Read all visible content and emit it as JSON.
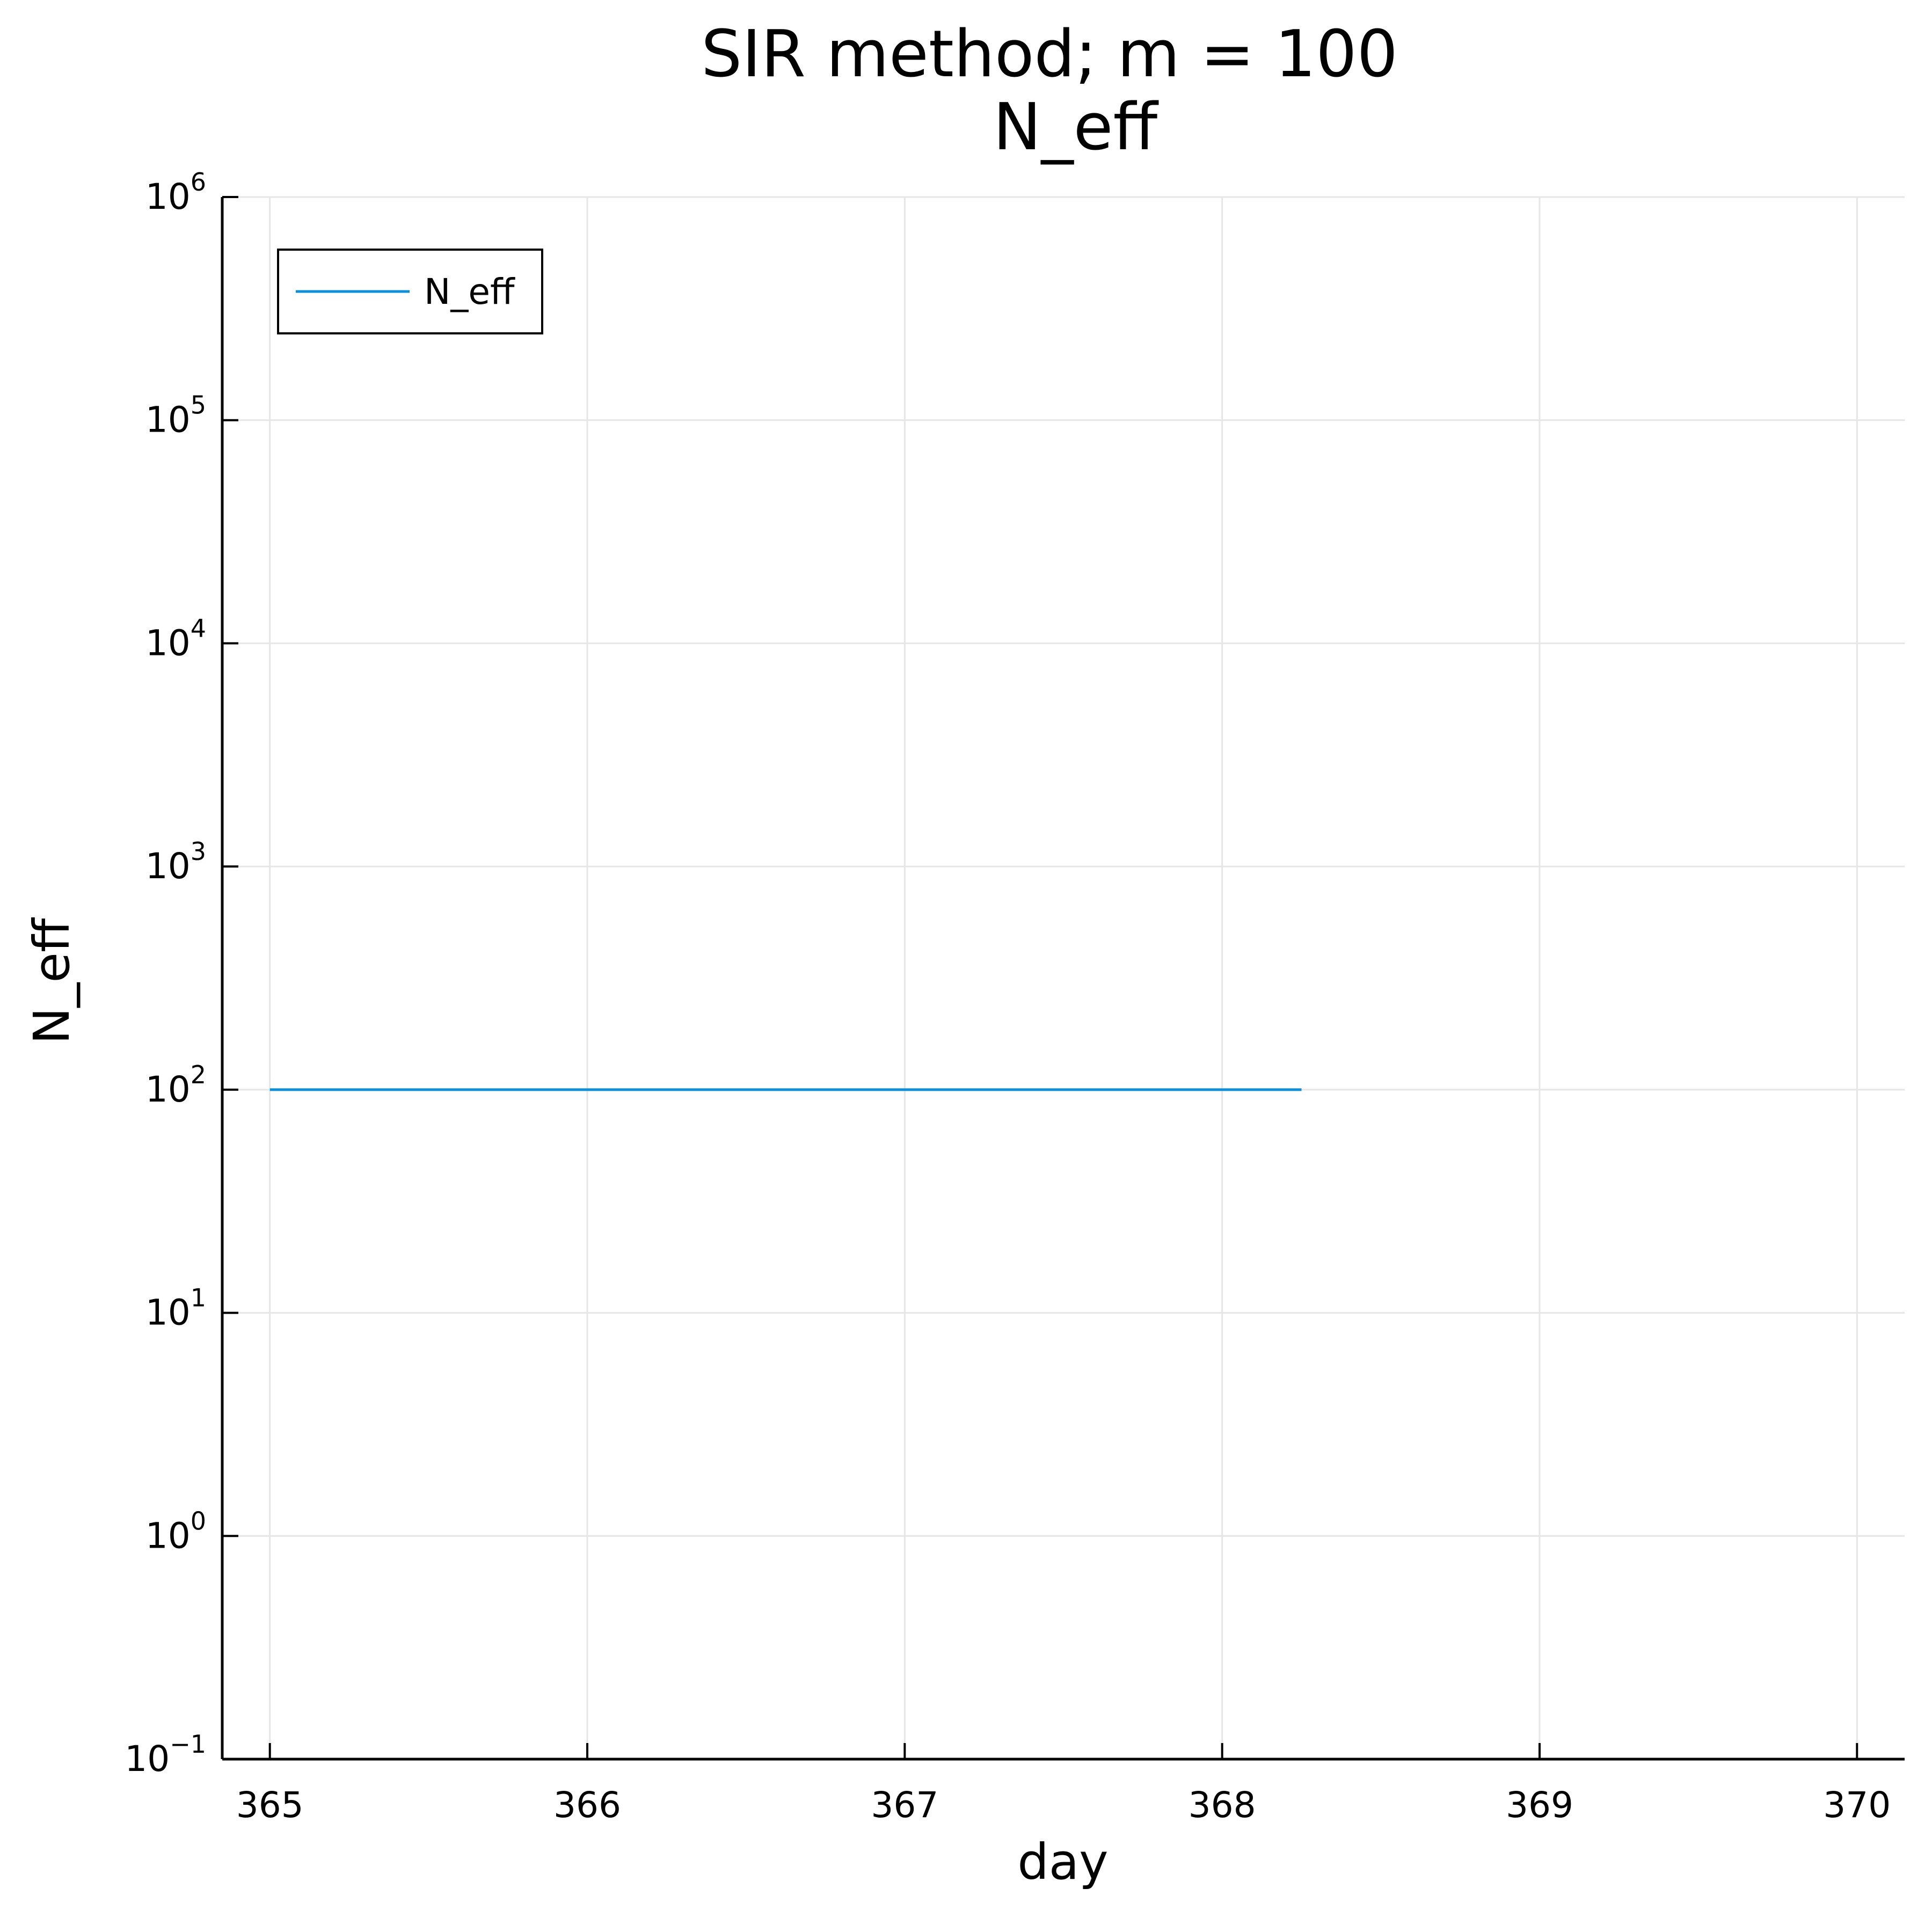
{
  "chart_data": {
    "type": "line",
    "title": "SIR method; m = 100",
    "subtitle": "N_eff",
    "xlabel": "day",
    "ylabel": "N_eff",
    "xlim": [
      364.85,
      370.15
    ],
    "ylim_exponent": [
      -1,
      6
    ],
    "yscale": "log10",
    "xticks": [
      "365",
      "366",
      "367",
      "368",
      "369",
      "370"
    ],
    "yticks": [
      {
        "base": "10",
        "exp": "−1"
      },
      {
        "base": "10",
        "exp": "0"
      },
      {
        "base": "10",
        "exp": "1"
      },
      {
        "base": "10",
        "exp": "2"
      },
      {
        "base": "10",
        "exp": "3"
      },
      {
        "base": "10",
        "exp": "4"
      },
      {
        "base": "10",
        "exp": "5"
      },
      {
        "base": "10",
        "exp": "6"
      }
    ],
    "grid": true,
    "legend_position": "top-left",
    "series": [
      {
        "name": "N_eff",
        "color": "#0f8fd8",
        "x": [
          365.0,
          365.25,
          365.5,
          365.75,
          366.0,
          366.25,
          366.5,
          366.75,
          367.0,
          367.25,
          367.5,
          367.75,
          368.0,
          368.25
        ],
        "y": [
          100,
          100,
          100,
          100,
          100,
          100,
          100,
          100,
          100,
          100,
          100,
          100,
          100,
          100
        ]
      }
    ]
  }
}
